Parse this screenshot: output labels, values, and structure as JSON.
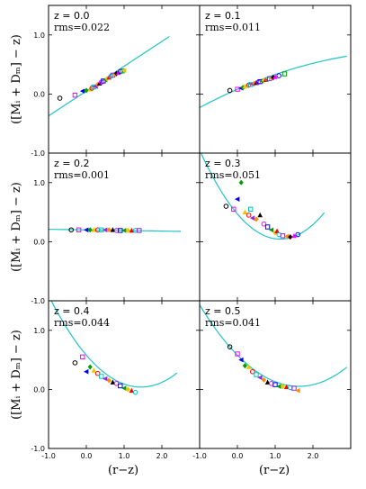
{
  "chart_data": {
    "type": "scatter",
    "xlabel": "(r−z)",
    "ylabel": "([Mᵢ + Dₘ] − z)",
    "xlim": [
      -1.0,
      3.0
    ],
    "ylim": [
      -1.0,
      1.5
    ],
    "xticks": [
      -1.0,
      0.0,
      1.0,
      2.0
    ],
    "yticks": [
      -1.0,
      0.0,
      1.0
    ],
    "fit_color": "#1fc4c4",
    "marker_colors": [
      "#000000",
      "#ff00ff",
      "#0000ff",
      "#00a000",
      "#e6c800",
      "#ff0000",
      "#00c0c0",
      "#8a2be2",
      "#ff8c00"
    ],
    "panels": [
      {
        "z_label": "z = 0.0",
        "rms_label": "rms=0.022",
        "fit": {
          "coef": [
            0.05,
            0.42,
            0.0
          ],
          "xrange": [
            -1.0,
            2.2
          ]
        },
        "points_x": [
          -0.7,
          -0.3,
          -0.1,
          0.0,
          0.1,
          0.15,
          0.2,
          0.25,
          0.3,
          0.35,
          0.4,
          0.45,
          0.5,
          0.55,
          0.6,
          0.65,
          0.7,
          0.75,
          0.8,
          0.85,
          0.9,
          0.95,
          1.0
        ],
        "points_y": [
          -0.07,
          -0.02,
          0.05,
          0.06,
          0.08,
          0.1,
          0.12,
          0.13,
          0.16,
          0.18,
          0.2,
          0.22,
          0.24,
          0.26,
          0.28,
          0.3,
          0.32,
          0.33,
          0.35,
          0.36,
          0.38,
          0.39,
          0.4
        ]
      },
      {
        "z_label": "z = 0.1",
        "rms_label": "rms=0.011",
        "fit": {
          "coef": [
            0.08,
            0.28,
            -0.03
          ],
          "xrange": [
            -1.0,
            2.9
          ]
        },
        "points_x": [
          -0.2,
          0.0,
          0.1,
          0.15,
          0.2,
          0.3,
          0.35,
          0.4,
          0.45,
          0.5,
          0.55,
          0.6,
          0.65,
          0.7,
          0.75,
          0.8,
          0.85,
          0.9,
          0.95,
          1.0,
          1.1,
          1.25
        ],
        "points_y": [
          0.06,
          0.08,
          0.1,
          0.11,
          0.13,
          0.15,
          0.16,
          0.17,
          0.18,
          0.19,
          0.2,
          0.21,
          0.22,
          0.23,
          0.24,
          0.25,
          0.26,
          0.27,
          0.28,
          0.29,
          0.31,
          0.34
        ]
      },
      {
        "z_label": "z = 0.2",
        "rms_label": "rms=0.001",
        "fit": {
          "coef": [
            0.2,
            -0.01,
            0.0
          ],
          "xrange": [
            -1.0,
            2.5
          ]
        },
        "points_x": [
          -0.4,
          -0.2,
          0.0,
          0.1,
          0.2,
          0.3,
          0.4,
          0.5,
          0.6,
          0.7,
          0.8,
          0.9,
          1.0,
          1.1,
          1.2,
          1.3,
          1.4
        ],
        "points_y": [
          0.2,
          0.2,
          0.2,
          0.2,
          0.2,
          0.2,
          0.2,
          0.2,
          0.2,
          0.2,
          0.19,
          0.19,
          0.19,
          0.19,
          0.19,
          0.19,
          0.19
        ]
      },
      {
        "z_label": "z = 0.3",
        "rms_label": "rms=0.051",
        "fit": {
          "coef": [
            0.47,
            -0.75,
            0.33
          ],
          "xrange": [
            -1.0,
            2.3
          ]
        },
        "points_x": [
          -0.3,
          -0.1,
          0.0,
          0.1,
          0.2,
          0.3,
          0.35,
          0.4,
          0.5,
          0.6,
          0.7,
          0.8,
          0.9,
          1.0,
          1.05,
          1.1,
          1.2,
          1.3,
          1.4,
          1.5,
          1.6
        ],
        "points_y": [
          0.6,
          0.55,
          0.72,
          1.0,
          0.5,
          0.45,
          0.55,
          0.4,
          0.38,
          0.45,
          0.3,
          0.25,
          0.2,
          0.15,
          0.18,
          0.12,
          0.1,
          0.09,
          0.08,
          0.1,
          0.12
        ]
      },
      {
        "z_label": "z = 0.4",
        "rms_label": "rms=0.044",
        "fit": {
          "coef": [
            0.58,
            -0.75,
            0.26
          ],
          "xrange": [
            -1.0,
            2.4
          ]
        },
        "points_x": [
          -0.3,
          -0.1,
          0.0,
          0.1,
          0.2,
          0.3,
          0.4,
          0.5,
          0.6,
          0.7,
          0.8,
          0.9,
          1.0,
          1.1,
          1.2,
          1.3
        ],
        "points_y": [
          0.45,
          0.55,
          0.3,
          0.38,
          0.32,
          0.27,
          0.22,
          0.18,
          0.15,
          0.12,
          0.1,
          0.06,
          0.02,
          0.0,
          -0.02,
          -0.05
        ]
      },
      {
        "z_label": "z = 0.5",
        "rms_label": "rms=0.041",
        "fit": {
          "coef": [
            0.58,
            -0.65,
            0.2
          ],
          "xrange": [
            -1.0,
            2.9
          ]
        },
        "points_x": [
          -0.2,
          0.0,
          0.1,
          0.2,
          0.3,
          0.4,
          0.5,
          0.6,
          0.7,
          0.8,
          0.9,
          1.0,
          1.1,
          1.2,
          1.3,
          1.4,
          1.5,
          1.6
        ],
        "points_y": [
          0.72,
          0.6,
          0.5,
          0.4,
          0.38,
          0.3,
          0.25,
          0.2,
          0.16,
          0.12,
          0.1,
          0.08,
          0.05,
          0.05,
          0.04,
          0.03,
          0.02,
          -0.02
        ]
      }
    ]
  }
}
